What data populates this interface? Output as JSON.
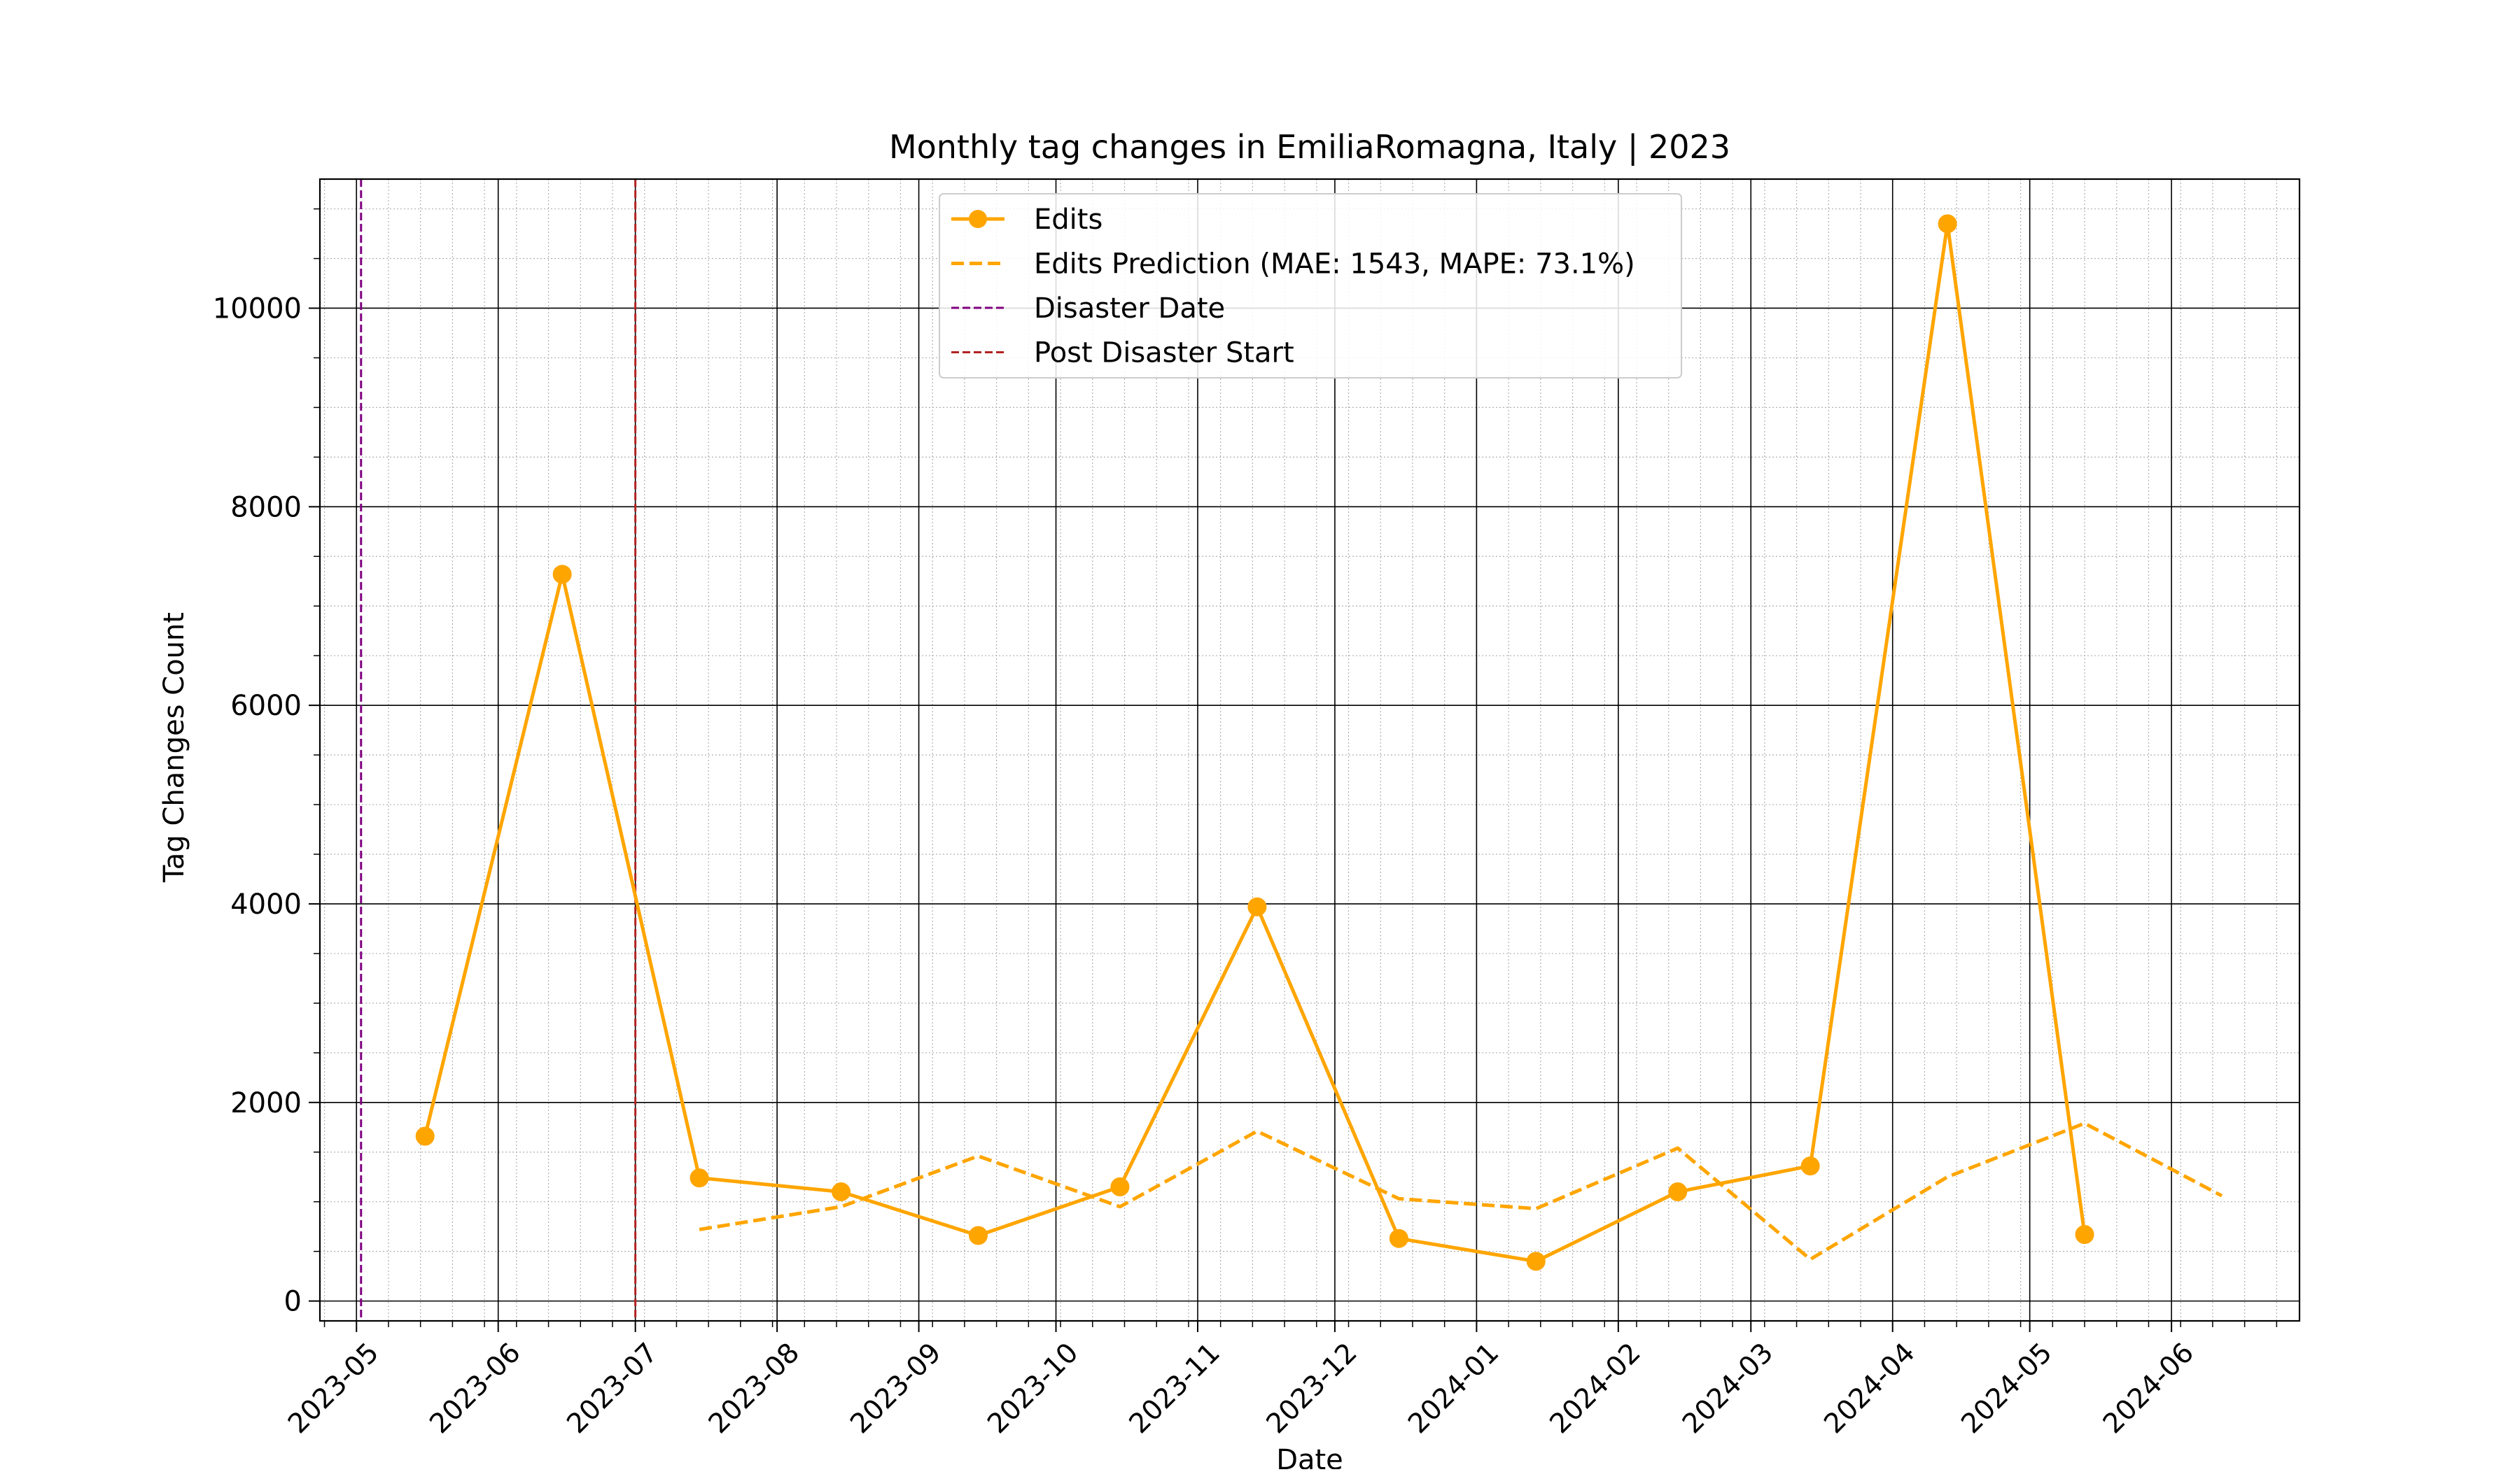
{
  "chart_data": {
    "type": "line",
    "title": "Monthly tag changes in EmiliaRomagna, Italy | 2023",
    "xlabel": "Date",
    "ylabel": "Tag Changes Count",
    "xlim": [
      "2023-04-23",
      "2024-06-29"
    ],
    "ylim": [
      -200,
      11300
    ],
    "x_ticks": [
      "2023-05-01",
      "2023-06-01",
      "2023-07-01",
      "2023-08-01",
      "2023-09-01",
      "2023-10-01",
      "2023-11-01",
      "2023-12-01",
      "2024-01-01",
      "2024-02-01",
      "2024-03-01",
      "2024-04-01",
      "2024-05-01",
      "2024-06-01"
    ],
    "x_tick_labels": [
      "2023-05",
      "2023-06",
      "2023-07",
      "2023-08",
      "2023-09",
      "2023-10",
      "2023-11",
      "2023-12",
      "2024-01",
      "2024-02",
      "2024-03",
      "2024-04",
      "2024-05",
      "2024-06"
    ],
    "y_ticks": [
      0,
      2000,
      4000,
      6000,
      8000,
      10000
    ],
    "y_tick_labels": [
      "0",
      "2000",
      "4000",
      "6000",
      "8000",
      "10000"
    ],
    "grid": true,
    "legend_position": "upper-center",
    "series": [
      {
        "name": "Edits",
        "style": "solid-with-markers",
        "color": "#FFA500",
        "x": [
          "2023-05-16",
          "2023-06-15",
          "2023-07-15",
          "2023-08-15",
          "2023-09-14",
          "2023-10-15",
          "2023-11-14",
          "2023-12-15",
          "2024-01-14",
          "2024-02-14",
          "2024-03-14",
          "2024-04-13",
          "2024-05-13"
        ],
        "y": [
          1660,
          7320,
          1240,
          1100,
          660,
          1150,
          3970,
          630,
          400,
          1100,
          1360,
          10850,
          670
        ]
      },
      {
        "name": "Edits Prediction (MAE: 1543, MAPE: 73.1%)",
        "style": "dashed",
        "color": "#FFA500",
        "x": [
          "2023-07-15",
          "2023-08-15",
          "2023-09-14",
          "2023-10-15",
          "2023-11-14",
          "2023-12-15",
          "2024-01-14",
          "2024-02-14",
          "2024-03-14",
          "2024-04-13",
          "2024-05-13",
          "2024-06-12"
        ],
        "y": [
          720,
          950,
          1460,
          950,
          1710,
          1030,
          930,
          1540,
          420,
          1250,
          1790,
          1060
        ]
      }
    ],
    "vlines": [
      {
        "name": "Disaster Date",
        "x": "2023-05-02",
        "color": "#800080",
        "style": "dashed"
      },
      {
        "name": "Post Disaster Start",
        "x": "2023-07-01",
        "color": "#B22222",
        "style": "dashed"
      }
    ]
  }
}
